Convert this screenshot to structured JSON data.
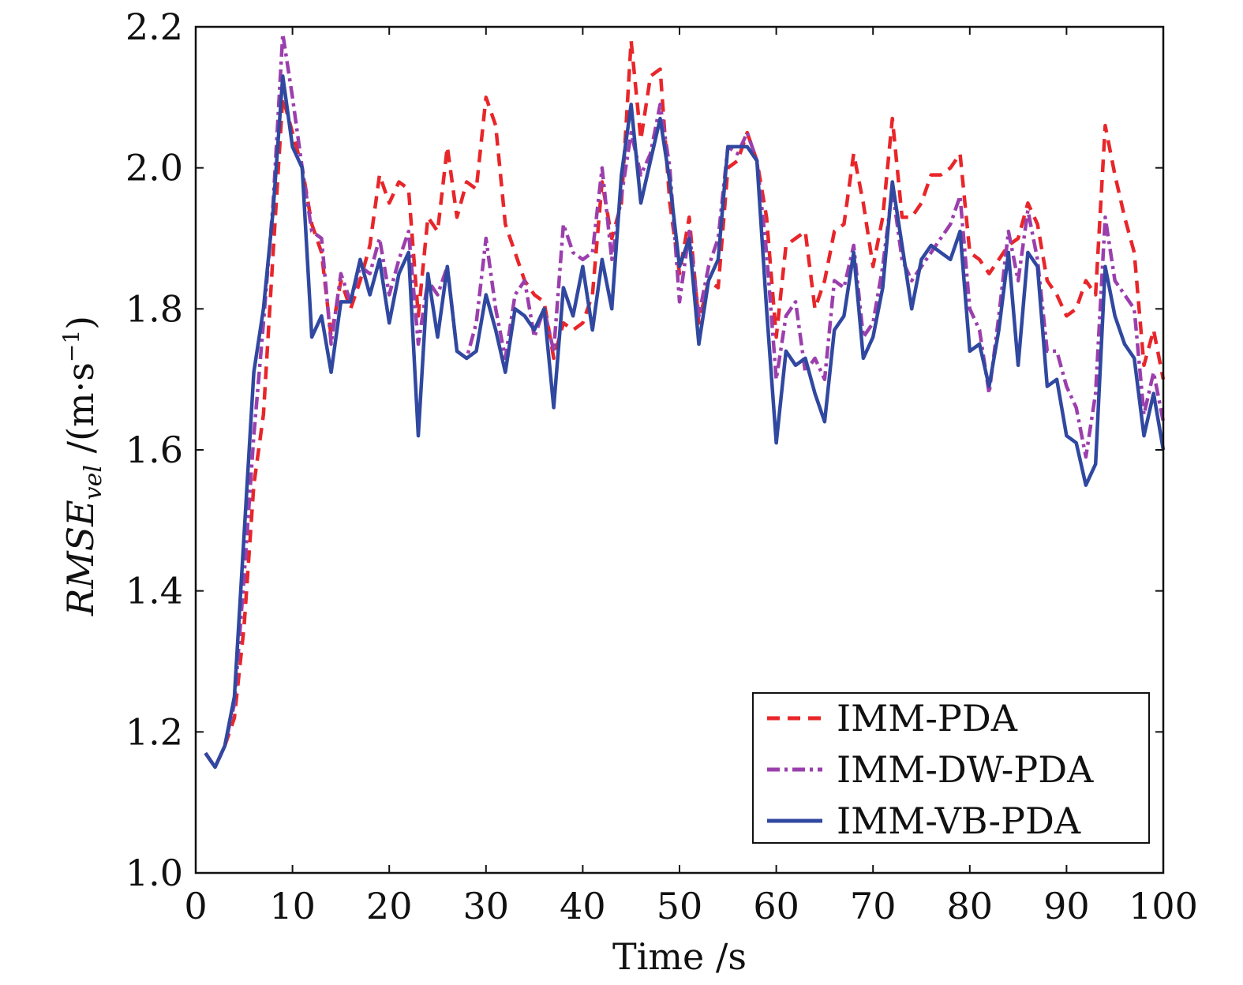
{
  "chart_data": {
    "type": "line",
    "title": "",
    "xlabel": "Time /s",
    "ylabel": {
      "main": "RMSE",
      "sub": "vel",
      "unit_prefix": " /(m·s",
      "unit_exp": "−1",
      "unit_suffix": ")"
    },
    "xlim": [
      0,
      100
    ],
    "ylim": [
      1.0,
      2.2
    ],
    "xticks": [
      0,
      10,
      20,
      30,
      40,
      50,
      60,
      70,
      80,
      90,
      100
    ],
    "yticks": [
      "1.0",
      "1.2",
      "1.4",
      "1.6",
      "1.8",
      "2.0",
      "2.2"
    ],
    "grid": false,
    "legend_position": "bottom-right",
    "x": [
      1,
      2,
      3,
      4,
      5,
      6,
      7,
      8,
      9,
      10,
      11,
      12,
      13,
      14,
      15,
      16,
      17,
      18,
      19,
      20,
      21,
      22,
      23,
      24,
      25,
      26,
      27,
      28,
      29,
      30,
      31,
      32,
      33,
      34,
      35,
      36,
      37,
      38,
      39,
      40,
      41,
      42,
      43,
      44,
      45,
      46,
      47,
      48,
      49,
      50,
      51,
      52,
      53,
      54,
      55,
      56,
      57,
      58,
      59,
      60,
      61,
      62,
      63,
      64,
      65,
      66,
      67,
      68,
      69,
      70,
      71,
      72,
      73,
      74,
      75,
      76,
      77,
      78,
      79,
      80,
      81,
      82,
      83,
      84,
      85,
      86,
      87,
      88,
      89,
      90,
      91,
      92,
      93,
      94,
      95,
      96,
      97,
      98,
      99,
      100
    ],
    "series": [
      {
        "name": "IMM-PDA",
        "color": "#e8262a",
        "dash": "dashed",
        "values": [
          1.17,
          1.15,
          1.18,
          1.22,
          1.35,
          1.55,
          1.65,
          1.88,
          2.1,
          2.05,
          2.0,
          1.92,
          1.88,
          1.76,
          1.84,
          1.8,
          1.84,
          1.89,
          1.99,
          1.95,
          1.98,
          1.97,
          1.79,
          1.93,
          1.91,
          2.03,
          1.93,
          1.98,
          1.97,
          2.1,
          2.06,
          1.92,
          1.88,
          1.84,
          1.82,
          1.81,
          1.73,
          1.78,
          1.77,
          1.78,
          1.82,
          1.98,
          1.9,
          1.95,
          2.18,
          2.04,
          2.13,
          2.14,
          1.95,
          1.85,
          1.93,
          1.78,
          1.84,
          1.83,
          2.0,
          2.01,
          2.05,
          2.01,
          1.93,
          1.76,
          1.89,
          1.9,
          1.91,
          1.8,
          1.84,
          1.91,
          1.92,
          2.02,
          1.95,
          1.86,
          1.93,
          2.07,
          1.93,
          1.93,
          1.95,
          1.99,
          1.99,
          2.0,
          2.02,
          1.88,
          1.87,
          1.85,
          1.87,
          1.89,
          1.9,
          1.95,
          1.92,
          1.84,
          1.82,
          1.79,
          1.8,
          1.84,
          1.82,
          2.06,
          1.99,
          1.93,
          1.88,
          1.72,
          1.77,
          1.7
        ]
      },
      {
        "name": "IMM-DW-PDA",
        "color": "#9b3fad",
        "dash": "dashdot",
        "values": [
          1.17,
          1.15,
          1.18,
          1.24,
          1.42,
          1.62,
          1.78,
          1.95,
          2.19,
          2.1,
          2.0,
          1.91,
          1.9,
          1.75,
          1.85,
          1.81,
          1.86,
          1.85,
          1.9,
          1.82,
          1.87,
          1.91,
          1.75,
          1.84,
          1.82,
          1.86,
          1.74,
          1.73,
          1.78,
          1.9,
          1.8,
          1.73,
          1.82,
          1.84,
          1.76,
          1.8,
          1.74,
          1.92,
          1.88,
          1.87,
          1.88,
          2.0,
          1.87,
          1.96,
          2.05,
          1.99,
          2.02,
          2.09,
          2.0,
          1.81,
          1.91,
          1.79,
          1.86,
          1.9,
          2.03,
          2.02,
          2.05,
          2.01,
          1.88,
          1.7,
          1.79,
          1.81,
          1.71,
          1.73,
          1.7,
          1.84,
          1.83,
          1.89,
          1.76,
          1.78,
          1.86,
          1.97,
          1.87,
          1.84,
          1.86,
          1.88,
          1.9,
          1.92,
          1.96,
          1.8,
          1.77,
          1.68,
          1.79,
          1.91,
          1.84,
          1.94,
          1.87,
          1.74,
          1.74,
          1.69,
          1.66,
          1.59,
          1.68,
          1.93,
          1.84,
          1.82,
          1.8,
          1.65,
          1.71,
          1.64
        ]
      },
      {
        "name": "IMM-VB-PDA",
        "color": "#3048a0",
        "dash": "solid",
        "values": [
          1.17,
          1.15,
          1.18,
          1.25,
          1.48,
          1.71,
          1.8,
          1.94,
          2.13,
          2.03,
          2.0,
          1.76,
          1.79,
          1.71,
          1.81,
          1.81,
          1.87,
          1.82,
          1.87,
          1.78,
          1.85,
          1.88,
          1.62,
          1.85,
          1.76,
          1.86,
          1.74,
          1.73,
          1.74,
          1.82,
          1.77,
          1.71,
          1.8,
          1.79,
          1.77,
          1.8,
          1.66,
          1.83,
          1.79,
          1.86,
          1.77,
          1.87,
          1.8,
          1.99,
          2.09,
          1.95,
          2.01,
          2.07,
          1.98,
          1.86,
          1.9,
          1.75,
          1.84,
          1.87,
          2.03,
          2.03,
          2.03,
          2.01,
          1.8,
          1.61,
          1.74,
          1.72,
          1.73,
          1.68,
          1.64,
          1.77,
          1.79,
          1.88,
          1.73,
          1.76,
          1.83,
          1.98,
          1.89,
          1.8,
          1.87,
          1.89,
          1.88,
          1.87,
          1.91,
          1.74,
          1.75,
          1.69,
          1.77,
          1.88,
          1.72,
          1.88,
          1.86,
          1.69,
          1.7,
          1.62,
          1.61,
          1.55,
          1.58,
          1.86,
          1.79,
          1.75,
          1.73,
          1.62,
          1.68,
          1.6
        ]
      }
    ]
  }
}
